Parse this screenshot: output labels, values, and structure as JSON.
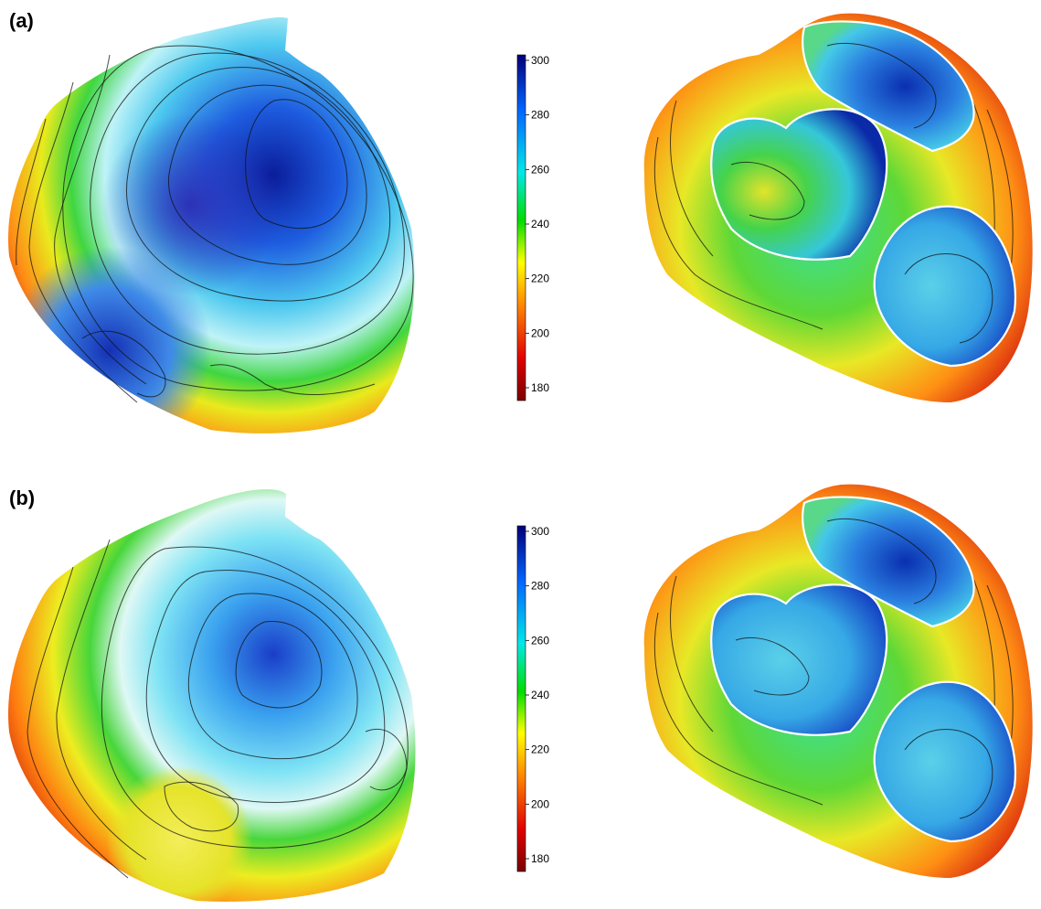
{
  "panels": [
    {
      "label": "(a)"
    },
    {
      "label": "(b)"
    }
  ],
  "colorbar": {
    "ticks": [
      "180",
      "200",
      "220",
      "240",
      "260",
      "280",
      "300"
    ],
    "colors": [
      "#7a0000",
      "#e00000",
      "#ff8a00",
      "#ffff00",
      "#00dd00",
      "#00e8e8",
      "#0066ff",
      "#00007a"
    ]
  }
}
